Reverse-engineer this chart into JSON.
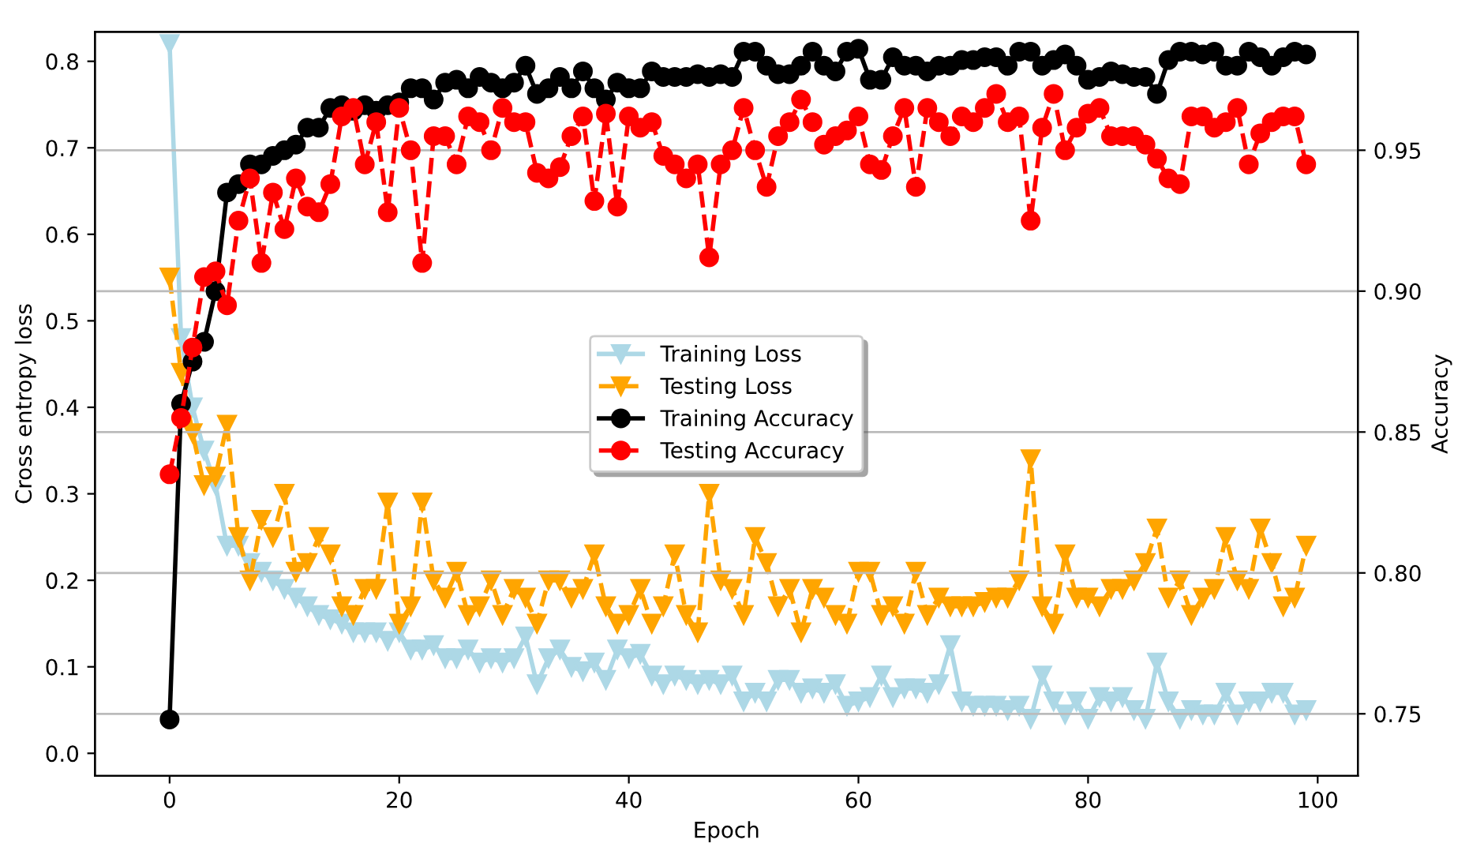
{
  "chart_data": {
    "type": "line",
    "xlabel": "Epoch",
    "ylabel": "Cross entropy loss",
    "y2label": "Accuracy",
    "x": [
      0,
      1,
      2,
      3,
      4,
      5,
      6,
      7,
      8,
      9,
      10,
      11,
      12,
      13,
      14,
      15,
      16,
      17,
      18,
      19,
      20,
      21,
      22,
      23,
      24,
      25,
      26,
      27,
      28,
      29,
      30,
      31,
      32,
      33,
      34,
      35,
      36,
      37,
      38,
      39,
      40,
      41,
      42,
      43,
      44,
      45,
      46,
      47,
      48,
      49,
      50,
      51,
      52,
      53,
      54,
      55,
      56,
      57,
      58,
      59,
      60,
      61,
      62,
      63,
      64,
      65,
      66,
      67,
      68,
      69,
      70,
      71,
      72,
      73,
      74,
      75,
      76,
      77,
      78,
      79,
      80,
      81,
      82,
      83,
      84,
      85,
      86,
      87,
      88,
      89,
      90,
      91,
      92,
      93,
      94,
      95,
      96,
      97,
      98,
      99
    ],
    "xlim": [
      -6.5,
      103.5
    ],
    "xticks": [
      0,
      20,
      40,
      60,
      80,
      100
    ],
    "ylim": [
      -0.026,
      0.834
    ],
    "yticks": [
      {
        "value": 0,
        "label": "0.0"
      },
      0.1,
      0.2,
      0.3,
      0.4,
      0.5,
      0.6,
      0.7,
      0.8
    ],
    "y2lim": [
      0.728,
      0.992
    ],
    "y2ticks": [
      0.75,
      {
        "value": 0.8,
        "label": "0.80"
      },
      0.85,
      {
        "value": 0.9,
        "label": "0.90"
      },
      0.95
    ],
    "grid": "y2",
    "legend": "center",
    "series": [
      {
        "name": "Training Loss",
        "color": "#add8e6",
        "marker": "triangle",
        "line_style": "solid",
        "values": [
          0.82,
          0.48,
          0.4,
          0.35,
          0.31,
          0.24,
          0.24,
          0.22,
          0.21,
          0.2,
          0.19,
          0.18,
          0.17,
          0.16,
          0.155,
          0.15,
          0.14,
          0.14,
          0.14,
          0.13,
          0.14,
          0.12,
          0.12,
          0.125,
          0.11,
          0.11,
          0.12,
          0.105,
          0.11,
          0.105,
          0.11,
          0.135,
          0.08,
          0.11,
          0.12,
          0.1,
          0.095,
          0.105,
          0.085,
          0.12,
          0.11,
          0.115,
          0.09,
          0.08,
          0.09,
          0.085,
          0.08,
          0.085,
          0.08,
          0.09,
          0.06,
          0.07,
          0.06,
          0.085,
          0.085,
          0.07,
          0.075,
          0.07,
          0.08,
          0.055,
          0.06,
          0.065,
          0.09,
          0.065,
          0.075,
          0.075,
          0.07,
          0.08,
          0.125,
          0.06,
          0.055,
          0.055,
          0.055,
          0.05,
          0.055,
          0.04,
          0.09,
          0.06,
          0.045,
          0.06,
          0.04,
          0.065,
          0.06,
          0.065,
          0.05,
          0.04,
          0.105,
          0.06,
          0.04,
          0.05,
          0.045,
          0.045,
          0.07,
          0.045,
          0.06,
          0.06,
          0.07,
          0.07,
          0.045,
          0.05
        ]
      },
      {
        "name": "Testing Loss",
        "color": "#ffa500",
        "marker": "triangle",
        "line_style": "dashed",
        "values": [
          0.55,
          0.44,
          0.37,
          0.31,
          0.32,
          0.38,
          0.25,
          0.2,
          0.27,
          0.25,
          0.3,
          0.21,
          0.22,
          0.25,
          0.23,
          0.17,
          0.16,
          0.19,
          0.19,
          0.29,
          0.15,
          0.17,
          0.29,
          0.2,
          0.18,
          0.21,
          0.16,
          0.17,
          0.2,
          0.16,
          0.19,
          0.18,
          0.15,
          0.2,
          0.2,
          0.18,
          0.19,
          0.23,
          0.17,
          0.15,
          0.16,
          0.19,
          0.15,
          0.17,
          0.23,
          0.16,
          0.14,
          0.3,
          0.2,
          0.19,
          0.16,
          0.25,
          0.22,
          0.17,
          0.19,
          0.14,
          0.19,
          0.18,
          0.16,
          0.15,
          0.21,
          0.21,
          0.16,
          0.17,
          0.15,
          0.21,
          0.16,
          0.18,
          0.17,
          0.17,
          0.17,
          0.175,
          0.18,
          0.18,
          0.2,
          0.34,
          0.17,
          0.15,
          0.23,
          0.18,
          0.18,
          0.17,
          0.19,
          0.19,
          0.2,
          0.22,
          0.26,
          0.18,
          0.2,
          0.16,
          0.18,
          0.19,
          0.25,
          0.2,
          0.19,
          0.26,
          0.22,
          0.17,
          0.18,
          0.24
        ]
      },
      {
        "name": "Training Accuracy",
        "color": "#000000",
        "marker": "circle",
        "line_style": "solid",
        "axis": "y2",
        "values": [
          0.748,
          0.86,
          0.875,
          0.882,
          0.9,
          0.935,
          0.938,
          0.945,
          0.945,
          0.948,
          0.95,
          0.952,
          0.958,
          0.958,
          0.965,
          0.966,
          0.964,
          0.966,
          0.964,
          0.966,
          0.967,
          0.972,
          0.972,
          0.968,
          0.974,
          0.975,
          0.972,
          0.976,
          0.974,
          0.972,
          0.974,
          0.98,
          0.97,
          0.972,
          0.976,
          0.972,
          0.978,
          0.972,
          0.968,
          0.974,
          0.972,
          0.972,
          0.978,
          0.976,
          0.976,
          0.976,
          0.977,
          0.976,
          0.977,
          0.976,
          0.985,
          0.985,
          0.98,
          0.977,
          0.977,
          0.98,
          0.985,
          0.98,
          0.978,
          0.985,
          0.986,
          0.975,
          0.975,
          0.983,
          0.98,
          0.98,
          0.978,
          0.98,
          0.98,
          0.982,
          0.982,
          0.983,
          0.983,
          0.98,
          0.985,
          0.985,
          0.98,
          0.982,
          0.984,
          0.98,
          0.975,
          0.976,
          0.978,
          0.977,
          0.976,
          0.976,
          0.97,
          0.982,
          0.985,
          0.985,
          0.984,
          0.985,
          0.98,
          0.98,
          0.985,
          0.983,
          0.98,
          0.983,
          0.985,
          0.984
        ]
      },
      {
        "name": "Testing Accuracy",
        "color": "#ff0000",
        "marker": "circle",
        "line_style": "dashed",
        "axis": "y2",
        "values": [
          0.835,
          0.855,
          0.88,
          0.905,
          0.907,
          0.895,
          0.925,
          0.94,
          0.91,
          0.935,
          0.922,
          0.94,
          0.93,
          0.928,
          0.938,
          0.962,
          0.965,
          0.945,
          0.96,
          0.928,
          0.965,
          0.95,
          0.91,
          0.955,
          0.955,
          0.945,
          0.962,
          0.96,
          0.95,
          0.965,
          0.96,
          0.96,
          0.942,
          0.94,
          0.944,
          0.955,
          0.962,
          0.932,
          0.963,
          0.93,
          0.962,
          0.958,
          0.96,
          0.948,
          0.945,
          0.94,
          0.945,
          0.912,
          0.945,
          0.95,
          0.965,
          0.95,
          0.937,
          0.955,
          0.96,
          0.968,
          0.96,
          0.952,
          0.955,
          0.957,
          0.962,
          0.945,
          0.943,
          0.955,
          0.965,
          0.937,
          0.965,
          0.96,
          0.955,
          0.962,
          0.96,
          0.965,
          0.97,
          0.96,
          0.962,
          0.925,
          0.958,
          0.97,
          0.95,
          0.958,
          0.963,
          0.965,
          0.955,
          0.955,
          0.955,
          0.952,
          0.947,
          0.94,
          0.938,
          0.962,
          0.962,
          0.958,
          0.96,
          0.965,
          0.945,
          0.956,
          0.96,
          0.962,
          0.962,
          0.945
        ]
      }
    ]
  }
}
